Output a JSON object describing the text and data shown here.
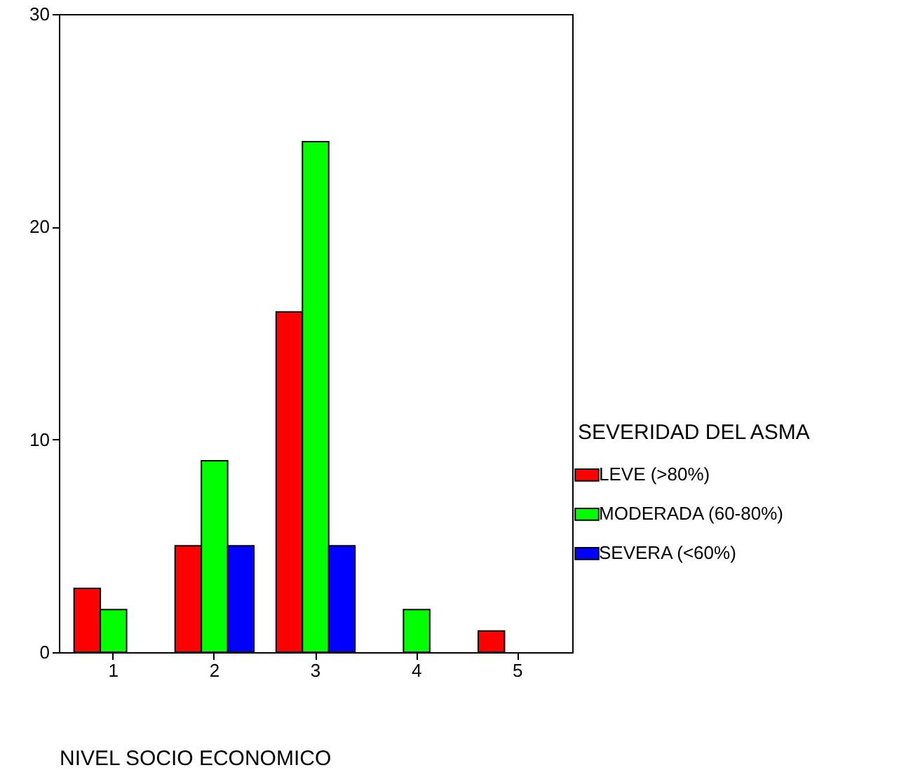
{
  "chart_data": {
    "type": "bar",
    "xlabel": "NIVEL SOCIO ECONOMICO",
    "legend_title": "SEVERIDAD DEL ASMA",
    "categories": [
      "1",
      "2",
      "3",
      "4",
      "5"
    ],
    "series": [
      {
        "name": "LEVE (>80%)",
        "color": "#ff0000",
        "values": [
          3,
          5,
          16,
          null,
          1
        ]
      },
      {
        "name": "MODERADA (60-80%)",
        "color": "#00ff00",
        "values": [
          2,
          9,
          24,
          2,
          null
        ]
      },
      {
        "name": "SEVERA (<60%)",
        "color": "#0000ff",
        "values": [
          null,
          5,
          5,
          null,
          null
        ]
      }
    ],
    "ylim": [
      0,
      30
    ],
    "yticks": [
      0,
      10,
      20,
      30
    ],
    "grid": false,
    "legend": "right"
  }
}
